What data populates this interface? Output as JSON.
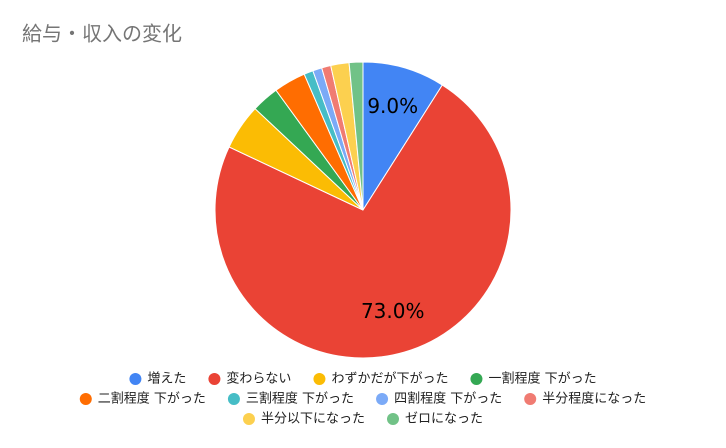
{
  "chart_data": {
    "type": "pie",
    "title": "給与・収入の変化",
    "categories": [
      "増えた",
      "変わらない",
      "わずかだが下がった",
      "一割程度 下がった",
      "二割程度 下がった",
      "三割程度 下がった",
      "四割程度 下がった",
      "半分程度になった",
      "半分以下になった",
      "ゼロになった"
    ],
    "values": [
      9.0,
      73.0,
      5.0,
      3.0,
      3.5,
      1.0,
      1.0,
      1.0,
      2.0,
      1.5
    ],
    "value_labels": [
      "9.0%",
      "73.0%",
      null,
      null,
      null,
      null,
      null,
      null,
      null,
      null
    ],
    "colors": [
      "#4285f4",
      "#ea4335",
      "#fbbc04",
      "#34a853",
      "#ff6d01",
      "#46bdc6",
      "#7baaf7",
      "#f07b72",
      "#fcd04f",
      "#71c287"
    ],
    "legend": "bottom"
  }
}
